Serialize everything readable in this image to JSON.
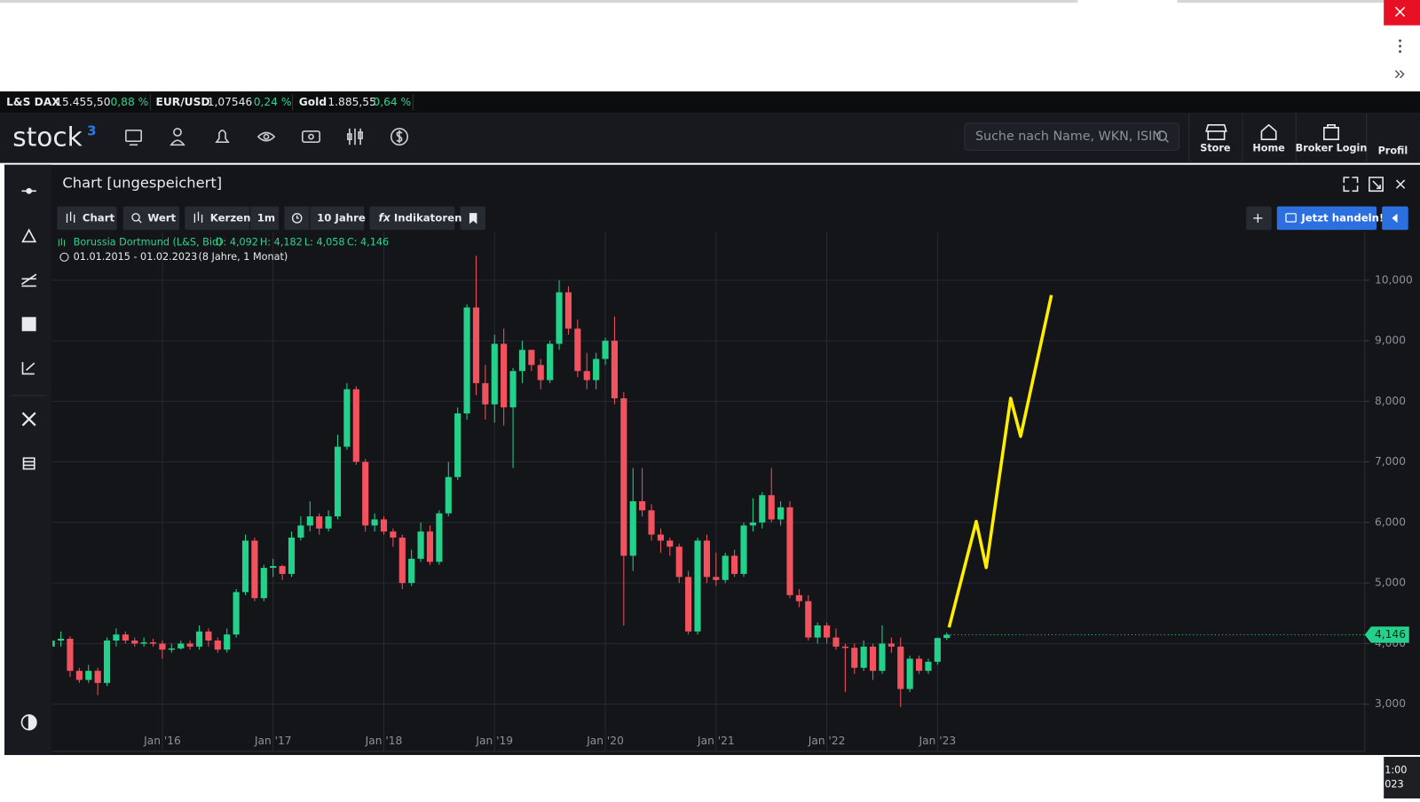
{
  "ticker": [
    {
      "name": "L&S DAX",
      "price": "15.455,50",
      "change": "0,88 %"
    },
    {
      "name": "EUR/USD",
      "price": "1,07546",
      "change": "0,24 %"
    },
    {
      "name": "Gold",
      "price": "1.885,55",
      "change": "0,64 %"
    }
  ],
  "nav": {
    "logo": "stock",
    "logo_sup": "3",
    "search_placeholder": "Suche nach Name, WKN, ISIN",
    "links": [
      "Store",
      "Home",
      "Broker Login",
      "Profil"
    ]
  },
  "panel": {
    "title": "Chart [ungespeichert]",
    "toolbar": [
      "Chart",
      "Wert",
      "Kerzen",
      "1m",
      "10 Jahre",
      "Indikatoren"
    ],
    "trade_button": "Jetzt handeln!"
  },
  "taskbar": {
    "time": "1:00",
    "date": "023"
  },
  "chart_data": {
    "type": "candlestick",
    "title": "Borussia Dortmund (L&S, Bid)",
    "ohlc_labels": [
      "O: 4,092",
      "H: 4,182",
      "L: 4,058",
      "C: 4,146"
    ],
    "range_label": "01.01.2015 - 01.02.2023",
    "range_note": "(8 Jahre, 1 Monat)",
    "last_price_label": "4,146",
    "up_color": "#23d18b",
    "down_color": "#f2525e",
    "grid": true,
    "categories": [
      null,
      null,
      null,
      null,
      null,
      null,
      null,
      null,
      null,
      null,
      null,
      null,
      "Jan '16",
      null,
      null,
      null,
      null,
      null,
      null,
      null,
      null,
      null,
      null,
      null,
      "Jan '17",
      null,
      null,
      null,
      null,
      null,
      null,
      null,
      null,
      null,
      null,
      null,
      "Jan '18",
      null,
      null,
      null,
      null,
      null,
      null,
      null,
      null,
      null,
      null,
      null,
      "Jan '19",
      null,
      null,
      null,
      null,
      null,
      null,
      null,
      null,
      null,
      null,
      null,
      "Jan '20",
      null,
      null,
      null,
      null,
      null,
      null,
      null,
      null,
      null,
      null,
      null,
      "Jan '21",
      null,
      null,
      null,
      null,
      null,
      null,
      null,
      null,
      null,
      null,
      null,
      "Jan '22",
      null,
      null,
      null,
      null,
      null,
      null,
      null,
      null,
      null,
      null,
      null,
      "Jan '23",
      null
    ],
    "open": [
      3.95,
      4.05,
      4.08,
      3.55,
      3.4,
      3.55,
      3.35,
      4.05,
      4.15,
      4.05,
      4.0,
      4.02,
      4.0,
      3.9,
      3.92,
      4.0,
      3.95,
      4.2,
      4.05,
      3.9,
      4.15,
      4.85,
      5.7,
      4.75,
      5.25,
      5.28,
      5.15,
      5.75,
      5.95,
      6.1,
      5.9,
      6.1,
      7.25,
      8.2,
      7.0,
      5.95,
      6.05,
      5.85,
      5.75,
      5.0,
      5.4,
      5.85,
      5.35,
      6.15,
      6.75,
      7.8,
      9.55,
      8.3,
      7.95,
      8.95,
      7.9,
      8.5,
      8.85,
      8.6,
      8.35,
      8.95,
      9.8,
      9.2,
      8.5,
      8.35,
      8.7,
      9.0,
      8.05,
      5.45,
      6.35,
      6.2,
      5.8,
      5.7,
      5.6,
      5.1,
      4.2,
      5.7,
      5.1,
      5.05,
      5.45,
      5.15,
      5.95,
      6.0,
      6.45,
      6.05,
      6.25,
      4.8,
      4.7,
      4.1,
      4.3,
      4.1,
      3.95,
      3.93,
      3.6,
      3.95,
      3.55,
      4.0,
      3.95,
      3.25,
      3.75,
      3.55,
      3.7,
      4.092
    ],
    "high": [
      4.25,
      4.2,
      4.12,
      3.6,
      3.65,
      3.6,
      4.1,
      4.25,
      4.2,
      4.1,
      4.1,
      4.08,
      4.05,
      4.0,
      4.05,
      4.05,
      4.3,
      4.25,
      4.1,
      4.25,
      4.9,
      5.8,
      5.75,
      5.3,
      5.4,
      5.3,
      5.85,
      6.1,
      6.35,
      6.15,
      6.2,
      7.45,
      8.3,
      8.25,
      7.05,
      6.15,
      6.1,
      5.9,
      5.8,
      5.55,
      6.0,
      5.95,
      6.2,
      7.0,
      7.9,
      9.6,
      10.4,
      8.6,
      9.1,
      9.2,
      8.55,
      9.0,
      8.85,
      8.7,
      9.0,
      10.0,
      9.9,
      9.35,
      8.8,
      8.8,
      9.05,
      9.4,
      8.15,
      6.9,
      6.9,
      6.3,
      5.9,
      5.75,
      5.65,
      5.2,
      5.75,
      5.8,
      5.5,
      5.5,
      5.55,
      6.0,
      6.4,
      6.5,
      6.9,
      6.35,
      6.35,
      4.9,
      4.8,
      4.35,
      4.35,
      4.25,
      4.0,
      4.0,
      4.05,
      4.0,
      4.3,
      4.1,
      4.1,
      3.8,
      3.8,
      3.75,
      4.1,
      4.182
    ],
    "low": [
      3.85,
      3.95,
      3.45,
      3.35,
      3.35,
      3.15,
      3.3,
      3.95,
      4.0,
      3.95,
      3.95,
      3.95,
      3.75,
      3.85,
      3.9,
      3.9,
      3.9,
      3.95,
      3.85,
      3.85,
      4.1,
      4.8,
      4.7,
      4.7,
      5.1,
      5.05,
      5.1,
      5.7,
      5.85,
      5.8,
      5.85,
      6.05,
      7.2,
      6.95,
      5.85,
      5.85,
      5.8,
      5.6,
      4.9,
      4.95,
      5.35,
      5.3,
      5.3,
      6.1,
      6.7,
      7.7,
      8.1,
      7.7,
      7.65,
      7.6,
      6.9,
      8.3,
      8.5,
      8.2,
      8.3,
      8.85,
      9.1,
      8.4,
      8.2,
      8.2,
      8.6,
      7.95,
      4.3,
      5.2,
      6.1,
      5.7,
      5.5,
      5.45,
      5.0,
      4.15,
      4.15,
      5.0,
      4.95,
      5.0,
      5.1,
      5.1,
      5.85,
      5.9,
      6.0,
      5.95,
      4.75,
      4.6,
      4.05,
      4.0,
      4.0,
      3.9,
      3.2,
      3.5,
      3.55,
      3.4,
      3.5,
      3.85,
      2.95,
      3.2,
      3.5,
      3.5,
      3.65,
      4.058
    ],
    "close": [
      4.05,
      4.08,
      3.55,
      3.4,
      3.55,
      3.35,
      4.05,
      4.15,
      4.05,
      4.0,
      4.02,
      4.0,
      3.9,
      3.92,
      4.0,
      3.95,
      4.2,
      4.05,
      3.9,
      4.15,
      4.85,
      5.7,
      4.75,
      5.25,
      5.28,
      5.15,
      5.75,
      5.95,
      6.1,
      5.9,
      6.1,
      7.25,
      8.2,
      7.0,
      5.95,
      6.05,
      5.85,
      5.75,
      5.0,
      5.4,
      5.85,
      5.35,
      6.15,
      6.75,
      7.8,
      9.55,
      8.3,
      7.95,
      8.95,
      7.9,
      8.5,
      8.85,
      8.6,
      8.35,
      8.95,
      9.8,
      9.2,
      8.5,
      8.35,
      8.7,
      9.0,
      8.05,
      5.45,
      6.35,
      6.2,
      5.8,
      5.7,
      5.6,
      5.1,
      4.2,
      5.7,
      5.1,
      5.05,
      5.45,
      5.15,
      5.95,
      6.0,
      6.45,
      6.05,
      6.25,
      4.8,
      4.7,
      4.1,
      4.3,
      4.1,
      3.95,
      3.93,
      3.6,
      3.95,
      3.55,
      4.0,
      3.95,
      3.25,
      3.75,
      3.55,
      3.7,
      4.092,
      4.146
    ],
    "ylim": [
      2.22,
      10.8
    ],
    "yticks": [
      {
        "value": 3,
        "label": "3,000"
      },
      {
        "value": 4,
        "label": "4,000"
      },
      {
        "value": 5,
        "label": "5,000"
      },
      {
        "value": 6,
        "label": "6,000"
      },
      {
        "value": 7,
        "label": "7,000"
      },
      {
        "value": 8,
        "label": "8,000"
      },
      {
        "value": 9,
        "label": "9,000"
      },
      {
        "value": 10,
        "label": "10,000"
      }
    ]
  }
}
